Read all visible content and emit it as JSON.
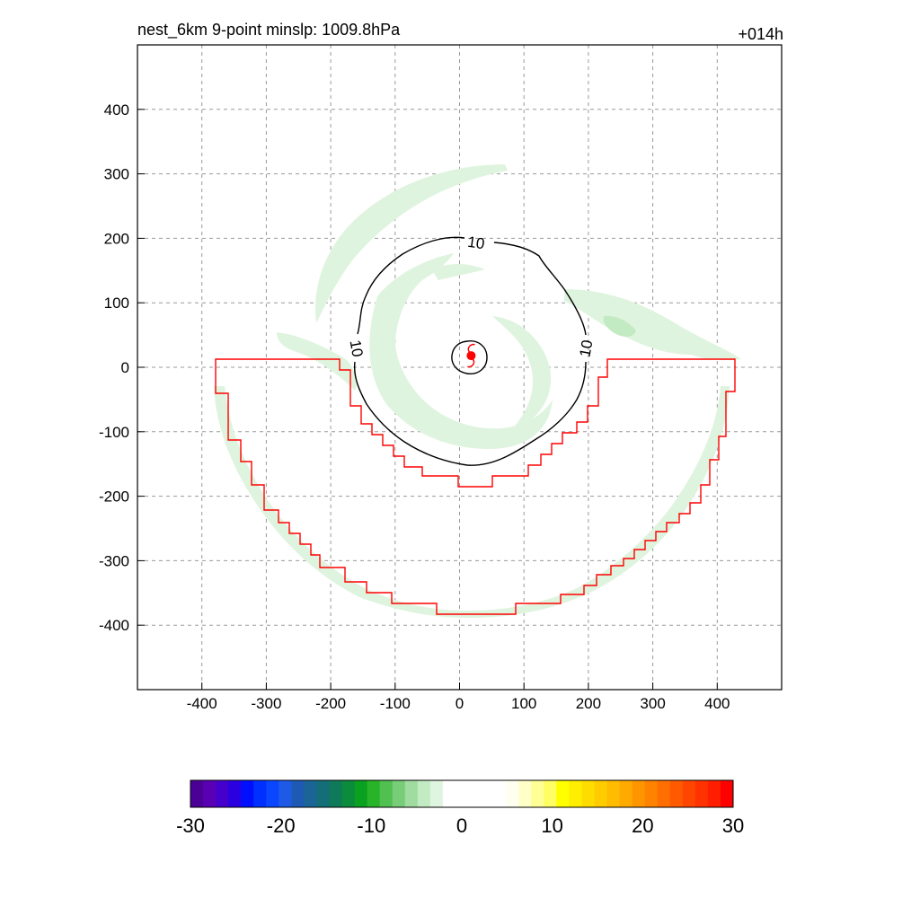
{
  "chart_data": {
    "type": "contour",
    "title_left": "nest_6km  9-point minslp: 1009.8hPa",
    "title_right": "+014h",
    "xlim": [
      -500,
      500
    ],
    "ylim": [
      -500,
      500
    ],
    "x_ticks": [
      -400,
      -300,
      -200,
      -100,
      0,
      100,
      200,
      300,
      400
    ],
    "y_ticks": [
      -400,
      -300,
      -200,
      -100,
      0,
      100,
      200,
      300,
      400
    ],
    "grid": true,
    "contour_level": "10",
    "contour_color": "#000000",
    "boundary_color": "#ff0000",
    "storm_center": [
      18,
      18
    ],
    "storm_symbol_color": "#ff0000",
    "shading_colors": [
      "#dff4df",
      "#c3ebc3"
    ],
    "colorbar": {
      "range": [
        -30,
        30
      ],
      "ticks": [
        "-30",
        "-20",
        "-10",
        "0",
        "10",
        "20",
        "30"
      ],
      "colors": [
        "#4b0096",
        "#5a00b4",
        "#4600cc",
        "#2a00e0",
        "#0010ff",
        "#0030ff",
        "#0a46ff",
        "#1e5ae6",
        "#1e5ab4",
        "#1a6496",
        "#146e78",
        "#0f7a5a",
        "#0a8c3c",
        "#0aa020",
        "#28b428",
        "#50c050",
        "#78cd78",
        "#a0dca0",
        "#c3ebc3",
        "#e0f5e0",
        "#ffffff",
        "#ffffff",
        "#ffffff",
        "#ffffff",
        "#ffffff",
        "#fffff0",
        "#ffffc8",
        "#ffff96",
        "#ffff64",
        "#ffff00",
        "#ffee00",
        "#ffdc00",
        "#ffcc00",
        "#ffbc00",
        "#ffaa00",
        "#ff9600",
        "#ff8200",
        "#ff6e00",
        "#ff5a00",
        "#ff4600",
        "#ff3200",
        "#ff1e00",
        "#ff0000"
      ]
    }
  }
}
